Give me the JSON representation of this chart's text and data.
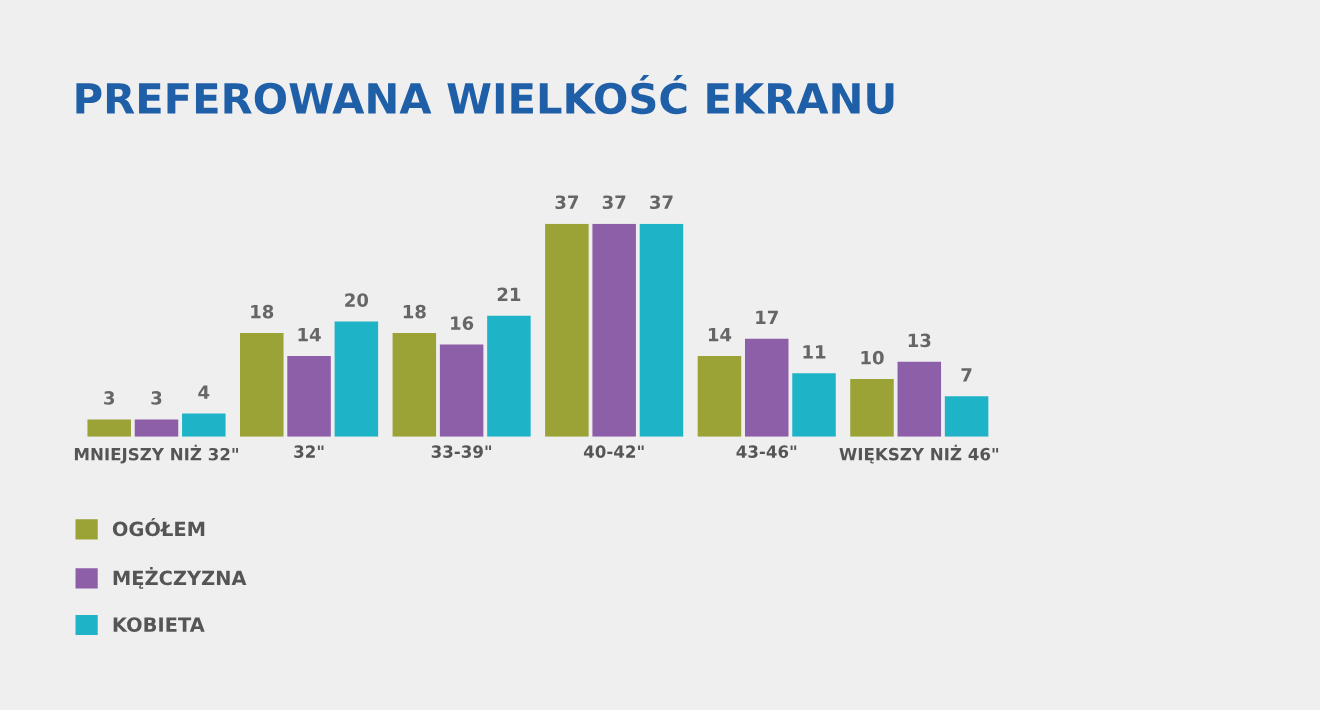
{
  "chart_data": {
    "type": "bar",
    "title": "PREFEROWANA WIELKOŚĆ EKRANU",
    "categories": [
      "MNIEJSZY NIŻ 32\"",
      "32\"",
      "33-39\"",
      "40-42\"",
      "43-46\"",
      "WIĘKSZY NIŻ 46\""
    ],
    "series": [
      {
        "name": "OGÓŁEM",
        "color": "#9ba236",
        "values": [
          3,
          18,
          18,
          37,
          14,
          10
        ]
      },
      {
        "name": "MĘŻCZYZNA",
        "color": "#8d5fa8",
        "values": [
          3,
          14,
          16,
          37,
          17,
          13
        ]
      },
      {
        "name": "KOBIETA",
        "color": "#1fb3c8",
        "values": [
          4,
          20,
          21,
          37,
          11,
          7
        ]
      }
    ],
    "data_labels": true,
    "legend": "bottom left",
    "grid": false
  }
}
